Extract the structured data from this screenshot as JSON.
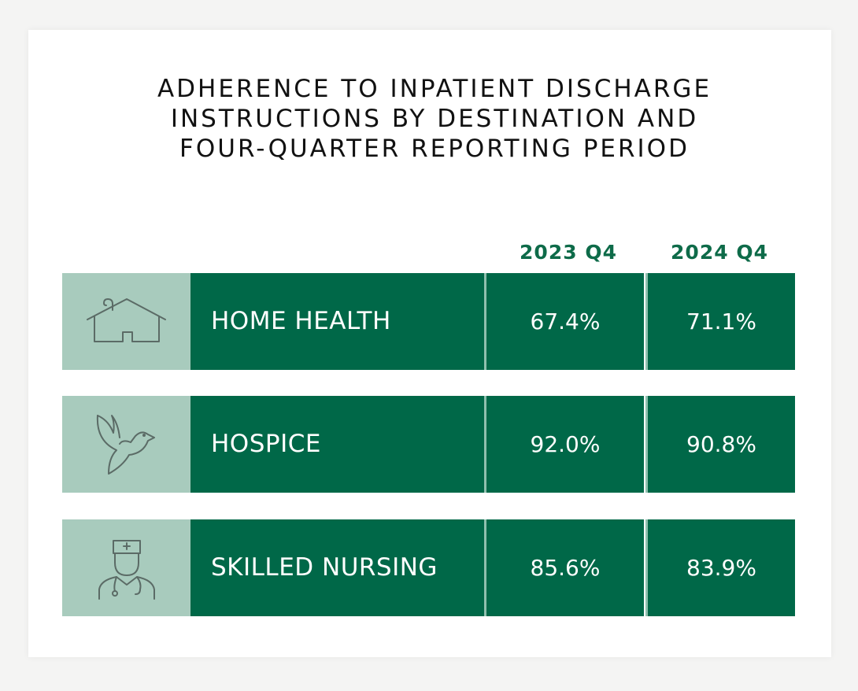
{
  "chart_data": {
    "type": "table",
    "title": "ADHERENCE TO INPATIENT DISCHARGE INSTRUCTIONS BY DESTINATION AND FOUR-QUARTER REPORTING PERIOD",
    "title_lines": [
      "ADHERENCE TO INPATIENT DISCHARGE",
      "INSTRUCTIONS BY DESTINATION AND",
      "FOUR-QUARTER REPORTING PERIOD"
    ],
    "columns": [
      "2023 Q4",
      "2024 Q4"
    ],
    "rows": [
      {
        "label": "HOME HEALTH",
        "icon": "house-icon",
        "values": [
          "67.4%",
          "71.1%"
        ]
      },
      {
        "label": "HOSPICE",
        "icon": "dove-icon",
        "values": [
          "92.0%",
          "90.8%"
        ]
      },
      {
        "label": "SKILLED NURSING",
        "icon": "nurse-icon",
        "values": [
          "85.6%",
          "83.9%"
        ]
      }
    ]
  },
  "colors": {
    "accent_green": "#006848",
    "header_green": "#0e6b49",
    "icon_bg": "#a8cbbd",
    "separator": "#8fc0ae",
    "icon_stroke": "#5b6b66"
  }
}
